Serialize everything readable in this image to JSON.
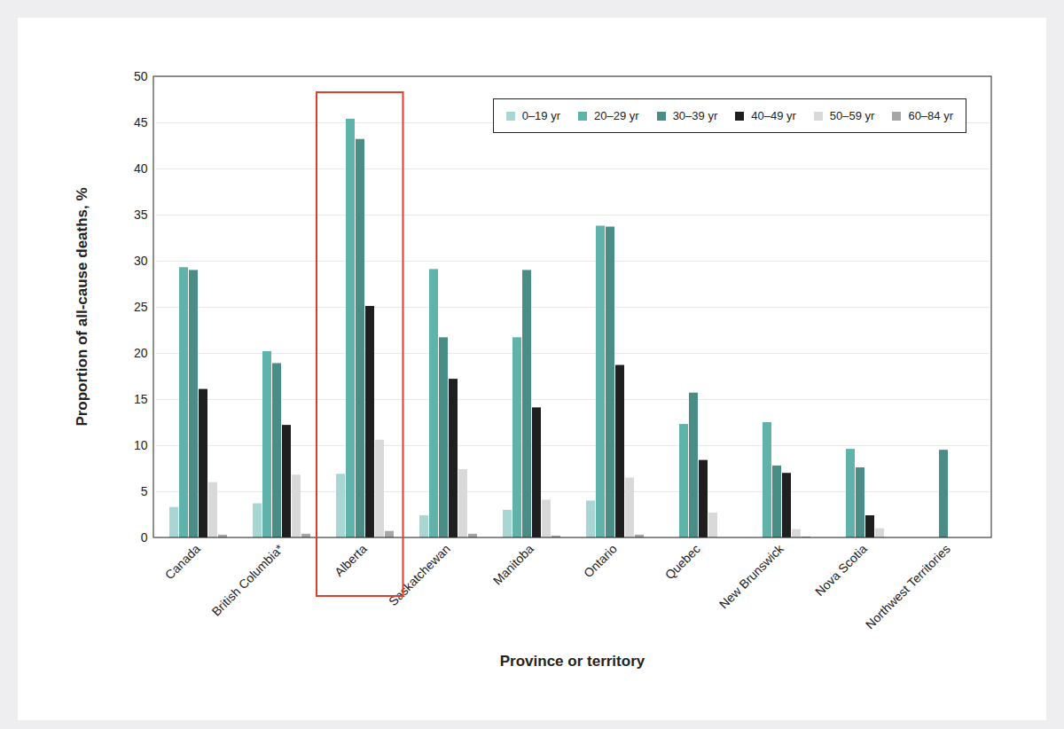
{
  "chart_data": {
    "type": "bar",
    "x_label": "Province or territory",
    "y_label": "Proportion of all-cause deaths, %",
    "categories": [
      "Canada",
      "British Columbia*",
      "Alberta",
      "Saskatchewan",
      "Manitoba",
      "Ontario",
      "Quebec",
      "New Brunswick",
      "Nova Scotia",
      "Northwest Territories"
    ],
    "series": [
      {
        "name": "0–19 yr",
        "color": "#a8d6d2",
        "values": [
          3.3,
          3.7,
          6.9,
          2.4,
          3.0,
          4.0,
          null,
          null,
          null,
          null
        ]
      },
      {
        "name": "20–29 yr",
        "color": "#5fb3aa",
        "values": [
          29.3,
          20.2,
          45.4,
          29.1,
          21.7,
          33.8,
          12.3,
          12.5,
          9.6,
          null
        ]
      },
      {
        "name": "30–39 yr",
        "color": "#4a8c86",
        "values": [
          29.0,
          18.9,
          43.2,
          21.7,
          29.0,
          33.7,
          15.7,
          7.8,
          7.6,
          9.5
        ]
      },
      {
        "name": "40–49 yr",
        "color": "#1f1f1f",
        "values": [
          16.1,
          12.2,
          25.1,
          17.2,
          14.1,
          18.7,
          8.4,
          7.0,
          2.4,
          null
        ]
      },
      {
        "name": "50–59 yr",
        "color": "#d9d9d9",
        "values": [
          6.0,
          6.8,
          10.6,
          7.4,
          4.1,
          6.5,
          2.7,
          0.9,
          1.0,
          null
        ]
      },
      {
        "name": "60–84 yr",
        "color": "#a6a6a6",
        "values": [
          0.3,
          0.4,
          0.7,
          0.4,
          0.2,
          0.3,
          null,
          0.1,
          null,
          null
        ]
      }
    ],
    "ylim": [
      0,
      50
    ],
    "yticks": [
      0,
      5,
      10,
      15,
      20,
      25,
      30,
      35,
      40,
      45,
      50
    ],
    "grid": true,
    "legend": "top-right"
  }
}
